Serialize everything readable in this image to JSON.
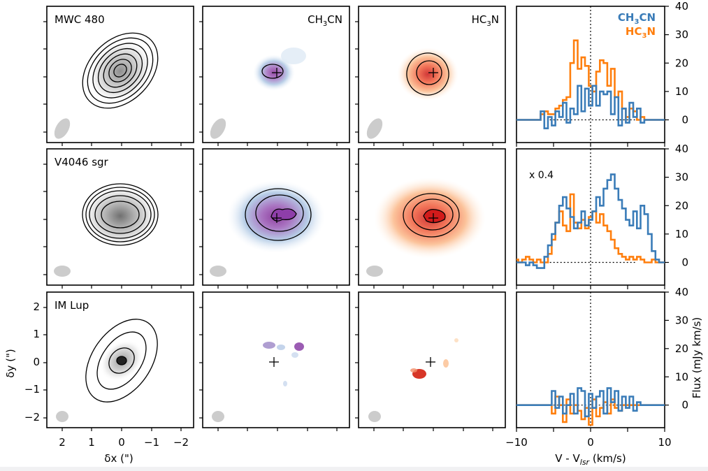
{
  "figure": {
    "row_labels": [
      "MWC 480",
      "V4046 sgr",
      "IM Lup"
    ],
    "col_labels": [
      "",
      "CH3CN",
      "HC3N"
    ],
    "col_labels_sub": [
      "",
      "3",
      "3"
    ],
    "map_xlabel": "δx (\")",
    "map_ylabel": "δy (\")",
    "map_xticks": [
      "2",
      "1",
      "0",
      "−1",
      "−2"
    ],
    "map_yticks": [
      "2",
      "1",
      "0",
      "−1",
      "−2"
    ],
    "spec_xlabel": "V - V",
    "spec_xlabel_sub": "lsr",
    "spec_xlabel_unit": " (km/s)",
    "spec_ylabel": "Flux (mJy km/s)",
    "spec_xticks": [
      "−10",
      "0",
      "10"
    ],
    "spec_yticks": [
      "0",
      "10",
      "20",
      "30",
      "40"
    ],
    "legend": {
      "ch3cn_a": "CH",
      "ch3cn_b": "3",
      "ch3cn_c": "CN",
      "hc3n_a": "HC",
      "hc3n_b": "3",
      "hc3n_c": "N"
    },
    "scale_note": "x 0.4",
    "colors": {
      "ch3cn": "#3a7cb8",
      "hc3n": "#ff7f0e",
      "continuum": "#555555",
      "beam": "#cccccc"
    }
  },
  "chart_data": {
    "type": "line",
    "x_range": [
      -10,
      10
    ],
    "y_range": [
      -8,
      40
    ],
    "x_unit": "km/s",
    "velocity": [
      -10,
      -9.5,
      -9,
      -8.5,
      -8,
      -7.5,
      -7,
      -6.5,
      -6,
      -5.5,
      -5,
      -4.5,
      -4,
      -3.5,
      -3,
      -2.5,
      -2,
      -1.5,
      -1,
      -0.5,
      0,
      0.5,
      1,
      1.5,
      2,
      2.5,
      3,
      3.5,
      4,
      4.5,
      5,
      5.5,
      6,
      6.5,
      7,
      7.5,
      8,
      8.5,
      9,
      9.5,
      10
    ],
    "panels": [
      {
        "source": "MWC 480",
        "scale": "",
        "series": [
          {
            "name": "CH3CN",
            "values": [
              0,
              0,
              0,
              0,
              0,
              0,
              0,
              3,
              -3,
              1,
              -2,
              3,
              1,
              6,
              -1,
              4,
              2,
              12,
              3,
              11,
              5,
              12,
              5,
              10,
              9,
              10,
              2,
              8,
              -2,
              4,
              -1,
              6,
              1,
              4,
              -1,
              0,
              0,
              0,
              0,
              0,
              0
            ]
          },
          {
            "name": "HC3N",
            "values": [
              0,
              0,
              0,
              0,
              0,
              0,
              0,
              2,
              3,
              2,
              2,
              4,
              5,
              7,
              8,
              20,
              28,
              18,
              22,
              19,
              12,
              10,
              17,
              21,
              20,
              12,
              18,
              8,
              10,
              4,
              1,
              4,
              3,
              0,
              1,
              0,
              0,
              0,
              0,
              0,
              0
            ]
          }
        ]
      },
      {
        "source": "V4046 sgr",
        "scale": "x 0.4",
        "series": [
          {
            "name": "CH3CN",
            "values": [
              0,
              0,
              0,
              -1,
              0,
              -1,
              -2,
              -2,
              2,
              6,
              10,
              14,
              20,
              23,
              19,
              16,
              12,
              14,
              18,
              13,
              15,
              18,
              23,
              20,
              26,
              29,
              31,
              26,
              22,
              19,
              15,
              13,
              18,
              12,
              20,
              17,
              10,
              4,
              1,
              0,
              0
            ]
          },
          {
            "name": "HC3N",
            "values": [
              1,
              0,
              1,
              2,
              1,
              0,
              1,
              0,
              0,
              3,
              8,
              14,
              18,
              13,
              11,
              24,
              14,
              12,
              15,
              12,
              16,
              18,
              14,
              17,
              13,
              11,
              8,
              5,
              3,
              2,
              1,
              2,
              1,
              2,
              1,
              0,
              0,
              1,
              0,
              0,
              0
            ]
          }
        ]
      },
      {
        "source": "IM Lup",
        "scale": "",
        "series": [
          {
            "name": "CH3CN",
            "values": [
              0,
              0,
              0,
              0,
              0,
              0,
              0,
              0,
              0,
              0,
              5,
              -1,
              3,
              -3,
              0,
              4,
              -3,
              6,
              5,
              -4,
              4,
              -1,
              3,
              5,
              -3,
              6,
              1,
              5,
              -2,
              3,
              -1,
              3,
              -2,
              1,
              0,
              0,
              0,
              0,
              0,
              0,
              0
            ]
          },
          {
            "name": "HC3N",
            "values": [
              0,
              0,
              0,
              0,
              0,
              0,
              0,
              0,
              0,
              0,
              -3,
              3,
              0,
              -6,
              2,
              -3,
              0,
              -2,
              -5,
              -1,
              -7,
              2,
              -4,
              -1,
              1,
              -3,
              2,
              -1,
              -2,
              0,
              0,
              0,
              0,
              0,
              0,
              0,
              0,
              0,
              0,
              0,
              0
            ]
          }
        ]
      }
    ]
  }
}
